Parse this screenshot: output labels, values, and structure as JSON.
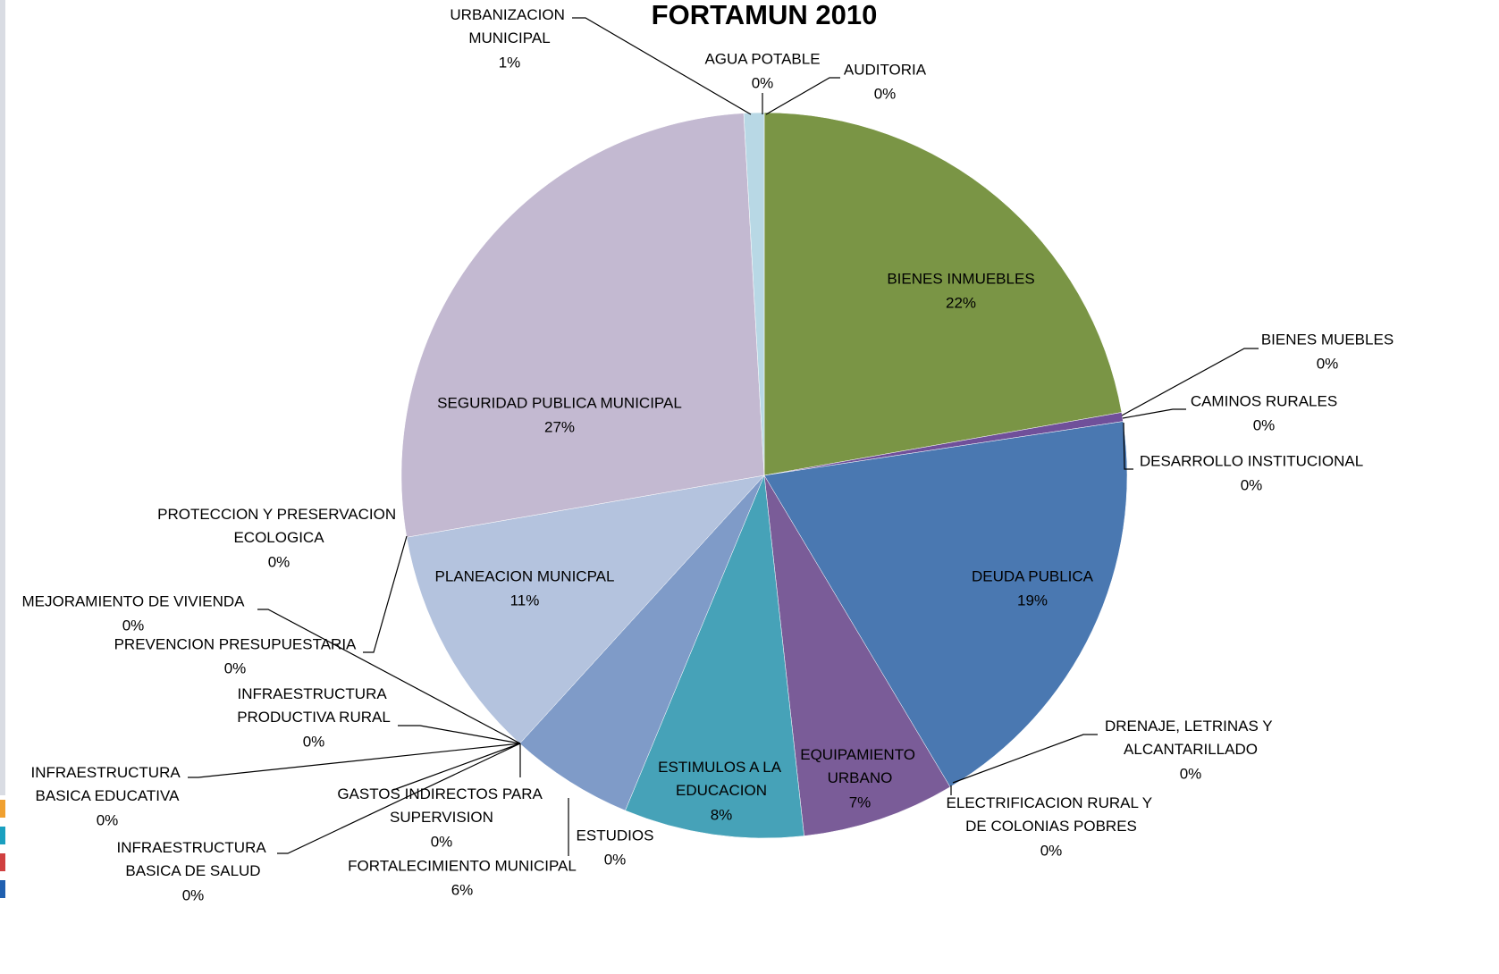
{
  "chart_data": {
    "type": "pie",
    "title": "FORTAMUN 2010",
    "categories": [
      "AGUA POTABLE",
      "AUDITORIA",
      "BIENES INMUEBLES",
      "BIENES MUEBLES",
      "CAMINOS RURALES",
      "DESARROLLO INSTITUCIONAL",
      "DEUDA PUBLICA",
      "DRENAJE, LETRINAS Y ALCANTARILLADO",
      "ELECTRIFICACION RURAL Y DE COLONIAS POBRES",
      "EQUIPAMIENTO URBANO",
      "ESTIMULOS A LA EDUCACION",
      "ESTUDIOS",
      "FORTALECIMIENTO MUNICIPAL",
      "GASTOS INDIRECTOS PARA SUPERVISION",
      "INFRAESTRUCTURA BASICA DE SALUD",
      "INFRAESTRUCTURA BASICA EDUCATIVA",
      "INFRAESTRUCTURA PRODUCTIVA RURAL",
      "MEJORAMIENTO DE VIVIENDA",
      "PLANEACION MUNICPAL",
      "PREVENCION PRESUPUESTARIA",
      "PROTECCION Y PRESERVACION ECOLOGICA",
      "SEGURIDAD PUBLICA MUNICIPAL",
      "URBANIZACION MUNICIPAL"
    ],
    "values": [
      0,
      0,
      22.2,
      0,
      0.4,
      0,
      18.8,
      0,
      0,
      6.8,
      8.0,
      0,
      5.5,
      0,
      0,
      0,
      0,
      0,
      10.5,
      0,
      0,
      26.8,
      0.9
    ],
    "value_labels": [
      "0%",
      "0%",
      "22%",
      "0%",
      "0%",
      "0%",
      "19%",
      "0%",
      "0%",
      "7%",
      "8%",
      "0%",
      "6%",
      "0%",
      "0%",
      "0%",
      "0%",
      "0%",
      "11%",
      "0%",
      "0%",
      "27%",
      "1%"
    ],
    "colors": [
      "#4f81bd",
      "#c0504d",
      "#7a9545",
      "#5b3f7a",
      "#70509a",
      "#3a9ab4",
      "#4a78b1",
      "#e08a3a",
      "#8ea7d2",
      "#7a5c98",
      "#46a2b8",
      "#d99694",
      "#7f9bc8",
      "#c4d79b",
      "#b2a1c7",
      "#93cddd",
      "#fac090",
      "#95b3d7",
      "#b4c3de",
      "#d7e4bd",
      "#ccc1da",
      "#c3b9d1",
      "#b8d8e5"
    ]
  }
}
